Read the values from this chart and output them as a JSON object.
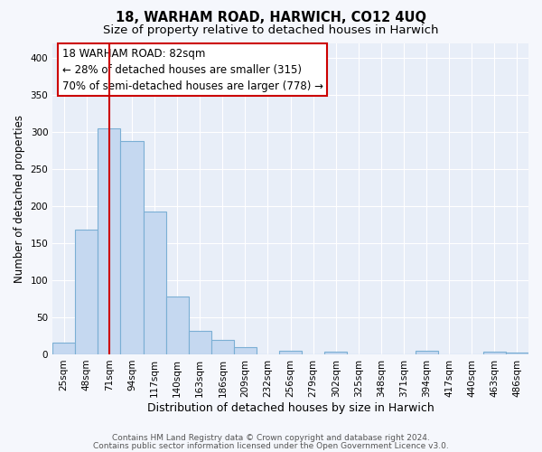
{
  "title": "18, WARHAM ROAD, HARWICH, CO12 4UQ",
  "subtitle": "Size of property relative to detached houses in Harwich",
  "xlabel": "Distribution of detached houses by size in Harwich",
  "ylabel": "Number of detached properties",
  "bin_labels": [
    "25sqm",
    "48sqm",
    "71sqm",
    "94sqm",
    "117sqm",
    "140sqm",
    "163sqm",
    "186sqm",
    "209sqm",
    "232sqm",
    "256sqm",
    "279sqm",
    "302sqm",
    "325sqm",
    "348sqm",
    "371sqm",
    "394sqm",
    "417sqm",
    "440sqm",
    "463sqm",
    "486sqm"
  ],
  "bar_heights": [
    16,
    168,
    305,
    288,
    192,
    78,
    32,
    19,
    10,
    0,
    5,
    0,
    3,
    0,
    0,
    0,
    5,
    0,
    0,
    3,
    2
  ],
  "bar_color": "#c5d8f0",
  "bar_edge_color": "#7bafd4",
  "vline_x": 2,
  "vline_color": "#cc0000",
  "annotation_line1": "18 WARHAM ROAD: 82sqm",
  "annotation_line2": "← 28% of detached houses are smaller (315)",
  "annotation_line3": "70% of semi-detached houses are larger (778) →",
  "box_edge_color": "#cc0000",
  "ylim": [
    0,
    420
  ],
  "yticks": [
    0,
    50,
    100,
    150,
    200,
    250,
    300,
    350,
    400
  ],
  "footer_line1": "Contains HM Land Registry data © Crown copyright and database right 2024.",
  "footer_line2": "Contains public sector information licensed under the Open Government Licence v3.0.",
  "plot_bg_color": "#e8eef8",
  "fig_bg_color": "#f5f7fc",
  "grid_color": "#ffffff",
  "title_fontsize": 10.5,
  "subtitle_fontsize": 9.5,
  "xlabel_fontsize": 9,
  "ylabel_fontsize": 8.5,
  "tick_fontsize": 7.5,
  "annotation_fontsize": 8.5,
  "footer_fontsize": 6.5
}
